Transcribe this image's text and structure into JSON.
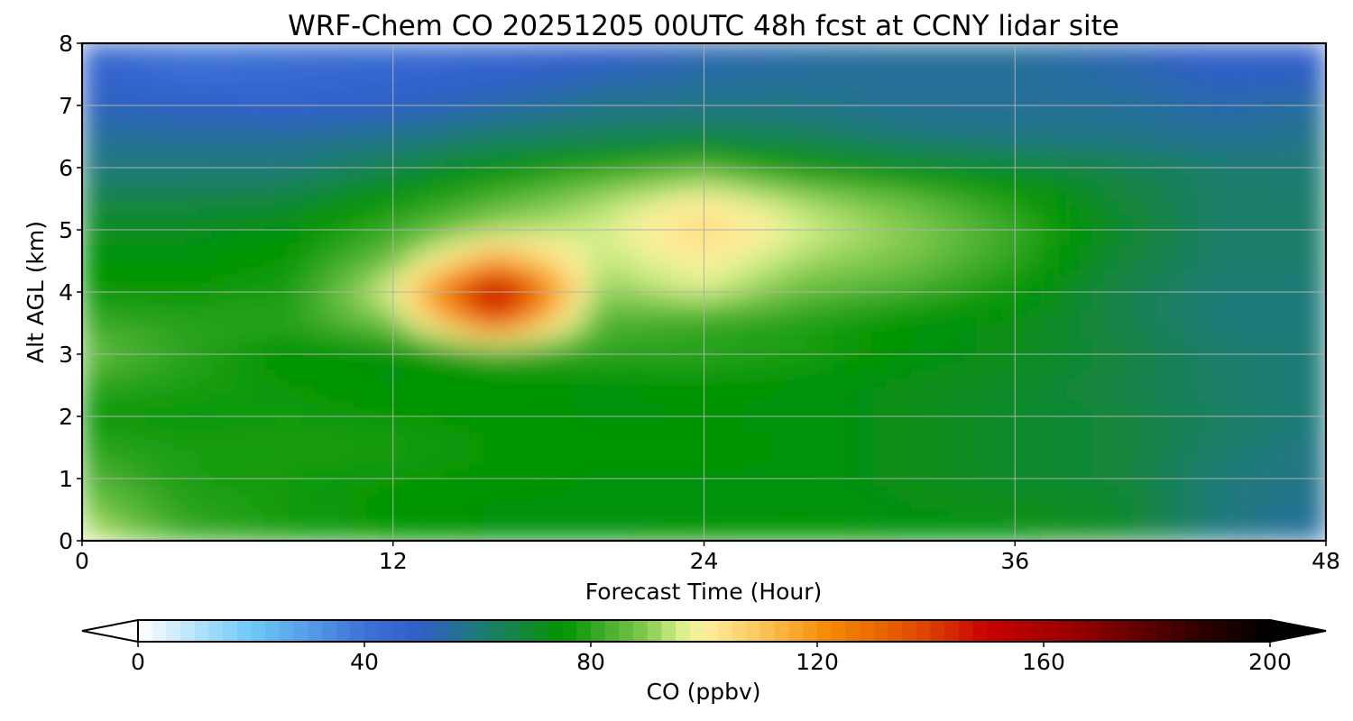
{
  "chart_data": {
    "type": "heatmap",
    "title": "WRF-Chem CO  20251205 00UTC 48h fcst at CCNY lidar site",
    "xlabel": "Forecast Time (Hour)",
    "ylabel": "Alt AGL (km)",
    "xlim": [
      0,
      48
    ],
    "ylim": [
      0,
      8
    ],
    "x_ticks": [
      "0",
      "12",
      "24",
      "36",
      "48"
    ],
    "x_tick_values": [
      0,
      12,
      24,
      36,
      48
    ],
    "y_ticks": [
      "0",
      "1",
      "2",
      "3",
      "4",
      "5",
      "6",
      "7",
      "8"
    ],
    "y_tick_values": [
      0,
      1,
      2,
      3,
      4,
      5,
      6,
      7,
      8
    ],
    "grid": true,
    "colorbar": {
      "label": "CO  (ppbv)",
      "range": [
        0,
        200
      ],
      "ticks": [
        "0",
        "40",
        "80",
        "120",
        "160",
        "200"
      ],
      "tick_values": [
        0,
        40,
        80,
        120,
        160,
        200
      ],
      "extend": "both",
      "color_stops": [
        {
          "v": 0,
          "c": "#ffffff"
        },
        {
          "v": 20,
          "c": "#6ec8f8"
        },
        {
          "v": 40,
          "c": "#3d72d6"
        },
        {
          "v": 50,
          "c": "#2f5fc8"
        },
        {
          "v": 60,
          "c": "#1f7a7a"
        },
        {
          "v": 70,
          "c": "#0f8a2a"
        },
        {
          "v": 75,
          "c": "#009400"
        },
        {
          "v": 82,
          "c": "#3daa2a"
        },
        {
          "v": 90,
          "c": "#86cc50"
        },
        {
          "v": 96,
          "c": "#d8f08c"
        },
        {
          "v": 100,
          "c": "#fff0a0"
        },
        {
          "v": 110,
          "c": "#fbc65a"
        },
        {
          "v": 122,
          "c": "#f58a00"
        },
        {
          "v": 138,
          "c": "#e04a00"
        },
        {
          "v": 150,
          "c": "#c80000"
        },
        {
          "v": 165,
          "c": "#9a0000"
        },
        {
          "v": 185,
          "c": "#3c0000"
        },
        {
          "v": 200,
          "c": "#000000"
        }
      ]
    },
    "series": [
      {
        "values": [
          [
            98,
            82,
            78,
            76,
            74,
            74,
            75,
            76,
            74,
            74,
            70,
            58,
            54
          ],
          [
            90,
            80,
            77,
            75,
            74,
            74,
            74,
            74,
            73,
            72,
            70,
            60,
            56
          ],
          [
            85,
            78,
            77,
            76,
            75,
            74,
            74,
            74,
            72,
            70,
            68,
            60,
            58
          ],
          [
            80,
            78,
            78,
            78,
            76,
            75,
            75,
            74,
            72,
            70,
            68,
            62,
            58
          ],
          [
            76,
            76,
            77,
            76,
            75,
            74,
            74,
            74,
            72,
            70,
            68,
            63,
            60
          ],
          [
            80,
            78,
            76,
            74,
            75,
            74,
            75,
            74,
            72,
            70,
            66,
            62,
            60
          ],
          [
            88,
            80,
            74,
            74,
            78,
            80,
            80,
            78,
            74,
            72,
            68,
            62,
            60
          ],
          [
            82,
            80,
            80,
            88,
            132,
            84,
            80,
            78,
            74,
            72,
            66,
            60,
            60
          ],
          [
            76,
            76,
            78,
            98,
            160,
            90,
            96,
            86,
            82,
            76,
            66,
            60,
            60
          ],
          [
            74,
            74,
            76,
            88,
            118,
            94,
            100,
            92,
            88,
            80,
            68,
            62,
            62
          ],
          [
            72,
            72,
            74,
            82,
            92,
            96,
            106,
            96,
            90,
            82,
            70,
            62,
            62
          ],
          [
            66,
            66,
            68,
            76,
            84,
            92,
            100,
            92,
            86,
            78,
            68,
            62,
            62
          ],
          [
            60,
            60,
            60,
            66,
            74,
            80,
            85,
            76,
            72,
            70,
            66,
            62,
            60
          ],
          [
            56,
            56,
            56,
            58,
            62,
            64,
            66,
            64,
            60,
            58,
            58,
            56,
            58
          ],
          [
            52,
            50,
            48,
            50,
            54,
            58,
            58,
            58,
            56,
            56,
            56,
            54,
            56
          ],
          [
            48,
            42,
            44,
            46,
            48,
            52,
            55,
            56,
            56,
            56,
            54,
            50,
            50
          ],
          [
            46,
            38,
            40,
            42,
            44,
            48,
            52,
            54,
            56,
            56,
            52,
            48,
            48
          ]
        ]
      }
    ]
  }
}
